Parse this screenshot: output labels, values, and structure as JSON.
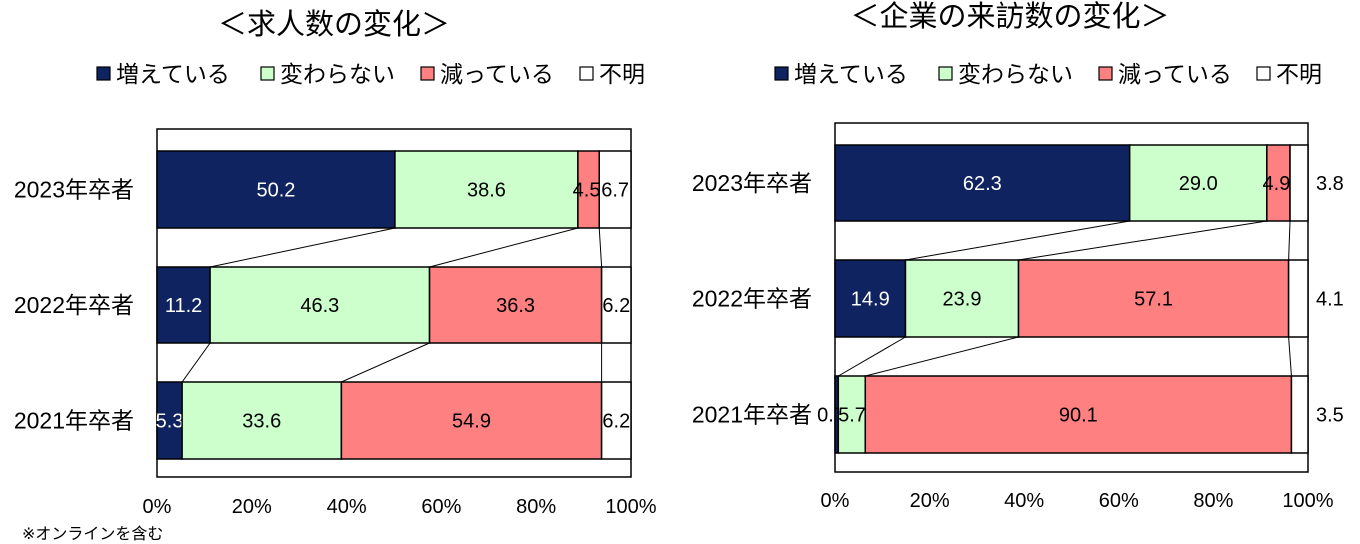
{
  "chart_data": [
    {
      "type": "bar",
      "orientation": "horizontal",
      "stacked": true,
      "title": "＜求人数の変化＞",
      "categories": [
        "2023年卒者",
        "2022年卒者",
        "2021年卒者"
      ],
      "series": [
        {
          "name": "増えている",
          "color": "#0e2360",
          "values": [
            50.2,
            11.2,
            5.3
          ]
        },
        {
          "name": "変わらない",
          "color": "#ccffcc",
          "values": [
            38.6,
            46.3,
            33.6
          ]
        },
        {
          "name": "減っている",
          "color": "#ff8080",
          "values": [
            4.5,
            36.3,
            54.9
          ]
        },
        {
          "name": "不明",
          "color": "#ffffff",
          "values": [
            6.7,
            6.2,
            6.2
          ]
        }
      ],
      "xlim": [
        0,
        100
      ],
      "xticks": [
        "0%",
        "20%",
        "40%",
        "60%",
        "80%",
        "100%"
      ],
      "legend": "top",
      "grid": false,
      "note": "※オンラインを含む"
    },
    {
      "type": "bar",
      "orientation": "horizontal",
      "stacked": true,
      "title": "＜企業の来訪数の変化＞",
      "categories": [
        "2023年卒者",
        "2022年卒者",
        "2021年卒者"
      ],
      "series": [
        {
          "name": "増えている",
          "color": "#0e2360",
          "values": [
            62.3,
            14.9,
            0.7
          ]
        },
        {
          "name": "変わらない",
          "color": "#ccffcc",
          "values": [
            29.0,
            23.9,
            5.7
          ]
        },
        {
          "name": "減っている",
          "color": "#ff8080",
          "values": [
            4.9,
            57.1,
            90.1
          ]
        },
        {
          "name": "不明",
          "color": "#ffffff",
          "values": [
            3.8,
            4.1,
            3.5
          ]
        }
      ],
      "xlim": [
        0,
        100
      ],
      "xticks": [
        "0%",
        "20%",
        "40%",
        "60%",
        "80%",
        "100%"
      ],
      "legend": "top",
      "grid": false
    }
  ]
}
